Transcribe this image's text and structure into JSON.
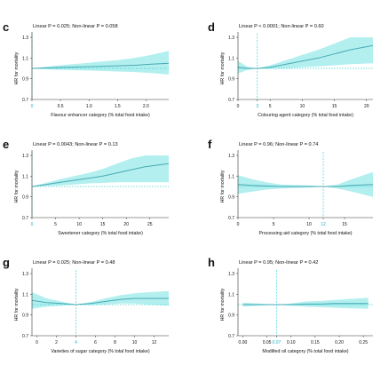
{
  "colors": {
    "band": "#a6ecec",
    "line": "#48aab4",
    "ref_line": "#3fd2d2",
    "axis": "#333333",
    "text": "#111111",
    "highlight": "#1fb4c8"
  },
  "chart_data": [
    {
      "panel": "c",
      "type": "line",
      "title": "Linear P = 0.025; Non-linear P = 0.058",
      "xlabel": "Flavour enhancer category (% total food intake)",
      "ylabel": "HR for mortality",
      "xlim": [
        0,
        2.4
      ],
      "ylim": [
        0.7,
        1.3
      ],
      "xticks": [
        "0",
        "0.5",
        "1.0",
        "1.5",
        "2.0"
      ],
      "xticks_values": [
        0,
        0.5,
        1.0,
        1.5,
        2.0
      ],
      "yticks": [
        "0.7",
        "0.9",
        "1.1",
        "1.3"
      ],
      "yticks_values": [
        0.7,
        0.9,
        1.1,
        1.3
      ],
      "reference_x": 0.0,
      "reference_label": "0.0",
      "reference_y": 1.0,
      "series": [
        {
          "x": [
            0,
            0.3,
            0.6,
            0.9,
            1.2,
            1.5,
            1.8,
            2.1,
            2.4
          ],
          "hr": [
            1.0,
            1.005,
            1.01,
            1.015,
            1.02,
            1.025,
            1.03,
            1.04,
            1.05
          ],
          "lower": [
            1.0,
            0.99,
            0.985,
            0.98,
            0.975,
            0.97,
            0.965,
            0.955,
            0.94
          ],
          "upper": [
            1.0,
            1.02,
            1.035,
            1.05,
            1.065,
            1.08,
            1.1,
            1.13,
            1.17
          ]
        }
      ]
    },
    {
      "panel": "d",
      "type": "line",
      "title": "Linear P < 0.0001; Non-linear P = 0.60",
      "xlabel": "Colouring agent category (% total food intake)",
      "ylabel": "HR for mortality",
      "xlim": [
        0,
        21
      ],
      "ylim": [
        0.7,
        1.3
      ],
      "xticks": [
        "0",
        "3",
        "5",
        "10",
        "15",
        "20"
      ],
      "xticks_values": [
        0,
        3,
        5,
        10,
        15,
        20
      ],
      "yticks": [
        "0.7",
        "0.9",
        "1.1",
        "1.3"
      ],
      "yticks_values": [
        0.7,
        0.9,
        1.1,
        1.3
      ],
      "reference_x": 3,
      "reference_label": "3",
      "reference_y": 1.0,
      "series": [
        {
          "x": [
            0,
            1.5,
            3,
            5,
            7.5,
            10,
            12.5,
            15,
            17.5,
            21
          ],
          "hr": [
            1.01,
            1.0,
            1.0,
            1.01,
            1.04,
            1.07,
            1.1,
            1.14,
            1.18,
            1.22
          ],
          "lower": [
            0.95,
            0.985,
            1.0,
            0.995,
            1.0,
            1.01,
            1.02,
            1.03,
            1.04,
            1.05
          ],
          "upper": [
            1.07,
            1.015,
            1.0,
            1.03,
            1.08,
            1.13,
            1.18,
            1.24,
            1.3,
            1.3
          ]
        }
      ]
    },
    {
      "panel": "e",
      "type": "line",
      "title": "Linear P = 0.0043; Non-linear P = 0.13",
      "xlabel": "Sweetener category (% total food intake)",
      "ylabel": "HR for mortality",
      "xlim": [
        0,
        29
      ],
      "ylim": [
        0.7,
        1.3
      ],
      "xticks": [
        "0",
        "5",
        "10",
        "15",
        "20",
        "25"
      ],
      "xticks_values": [
        0,
        5,
        10,
        15,
        20,
        25
      ],
      "yticks": [
        "0.7",
        "0.9",
        "1.1",
        "1.3"
      ],
      "yticks_values": [
        0.7,
        0.9,
        1.1,
        1.3
      ],
      "reference_x": 0,
      "reference_label": "0",
      "reference_y": 1.0,
      "series": [
        {
          "x": [
            0,
            3,
            6,
            9,
            12,
            15,
            18,
            21,
            24,
            29
          ],
          "hr": [
            1.0,
            1.02,
            1.04,
            1.06,
            1.08,
            1.1,
            1.13,
            1.16,
            1.19,
            1.22
          ],
          "lower": [
            1.0,
            1.005,
            1.01,
            1.02,
            1.03,
            1.035,
            1.04,
            1.04,
            1.04,
            1.04
          ],
          "upper": [
            1.0,
            1.035,
            1.07,
            1.1,
            1.13,
            1.17,
            1.22,
            1.27,
            1.31,
            1.35
          ]
        }
      ]
    },
    {
      "panel": "f",
      "type": "line",
      "title": "Linear P = 0.96; Non-linear P = 0.74",
      "xlabel": "Processing aid category (% total food intake)",
      "ylabel": "HR for mortality",
      "xlim": [
        0,
        19
      ],
      "ylim": [
        0.7,
        1.3
      ],
      "xticks": [
        "0",
        "5",
        "10",
        "12",
        "15"
      ],
      "xticks_values": [
        0,
        5,
        10,
        12,
        15
      ],
      "yticks": [
        "0.7",
        "0.9",
        "1.1",
        "1.3"
      ],
      "yticks_values": [
        0.7,
        0.9,
        1.1,
        1.3
      ],
      "reference_x": 12,
      "reference_label": "12",
      "reference_y": 1.0,
      "series": [
        {
          "x": [
            0,
            2,
            4,
            6,
            8,
            10,
            12,
            14,
            16,
            19
          ],
          "hr": [
            1.02,
            1.01,
            1.005,
            1.0,
            1.0,
            1.0,
            1.0,
            1.0,
            1.01,
            1.02
          ],
          "lower": [
            0.93,
            0.95,
            0.97,
            0.98,
            0.985,
            0.99,
            1.0,
            0.98,
            0.95,
            0.9
          ],
          "upper": [
            1.11,
            1.07,
            1.04,
            1.02,
            1.015,
            1.01,
            1.0,
            1.02,
            1.07,
            1.14
          ]
        }
      ]
    },
    {
      "panel": "g",
      "type": "line",
      "title": "Linear P = 0.025; Non-linear P = 0.48",
      "xlabel": "Varieties of sugar category (% total food intake)",
      "ylabel": "HR for mortality",
      "xlim": [
        -0.5,
        13.5
      ],
      "ylim": [
        0.7,
        1.3
      ],
      "xticks": [
        "0",
        "2",
        "4",
        "6",
        "8",
        "10",
        "12"
      ],
      "xticks_values": [
        0,
        2,
        4,
        6,
        8,
        10,
        12
      ],
      "yticks": [
        "0.7",
        "0.9",
        "1.1",
        "1.3"
      ],
      "yticks_values": [
        0.7,
        0.9,
        1.1,
        1.3
      ],
      "reference_x": 4,
      "reference_label": "4",
      "reference_y": 1.0,
      "series": [
        {
          "x": [
            -0.5,
            1,
            2.5,
            4,
            5.5,
            7,
            8.5,
            10,
            11.5,
            13.5
          ],
          "hr": [
            1.04,
            1.02,
            1.01,
            1.0,
            1.01,
            1.03,
            1.05,
            1.06,
            1.06,
            1.06
          ],
          "lower": [
            0.96,
            0.98,
            0.99,
            1.0,
            0.995,
            1.0,
            1.01,
            1.01,
            1.0,
            0.99
          ],
          "upper": [
            1.12,
            1.06,
            1.03,
            1.0,
            1.025,
            1.06,
            1.09,
            1.11,
            1.12,
            1.13
          ]
        }
      ]
    },
    {
      "panel": "h",
      "type": "line",
      "title": "Linear P = 0.95; Non-linear P = 0.42",
      "xlabel": "Modified oil category (% total food intake)",
      "ylabel": "HR for mortality",
      "xlim": [
        -0.01,
        0.27
      ],
      "ylim": [
        0.7,
        1.3
      ],
      "xticks": [
        "0.00",
        "0.05",
        "0.07",
        "0.10",
        "0.15",
        "0.20",
        "0.25"
      ],
      "xticks_values": [
        0.0,
        0.05,
        0.07,
        0.1,
        0.15,
        0.2,
        0.25
      ],
      "yticks": [
        "0.7",
        "0.9",
        "1.1",
        "1.3"
      ],
      "yticks_values": [
        0.7,
        0.9,
        1.1,
        1.3
      ],
      "reference_x": 0.07,
      "reference_label": "0.07",
      "reference_y": 1.0,
      "series": [
        {
          "x": [
            0.0,
            0.03,
            0.05,
            0.07,
            0.1,
            0.13,
            0.16,
            0.19,
            0.22,
            0.26
          ],
          "hr": [
            1.0,
            1.0,
            1.0,
            1.0,
            1.0,
            1.005,
            1.005,
            1.01,
            1.01,
            1.01
          ],
          "lower": [
            0.98,
            0.99,
            0.995,
            1.0,
            0.99,
            0.98,
            0.975,
            0.97,
            0.965,
            0.96
          ],
          "upper": [
            1.02,
            1.01,
            1.005,
            1.0,
            1.01,
            1.03,
            1.035,
            1.045,
            1.055,
            1.065
          ]
        }
      ]
    }
  ]
}
